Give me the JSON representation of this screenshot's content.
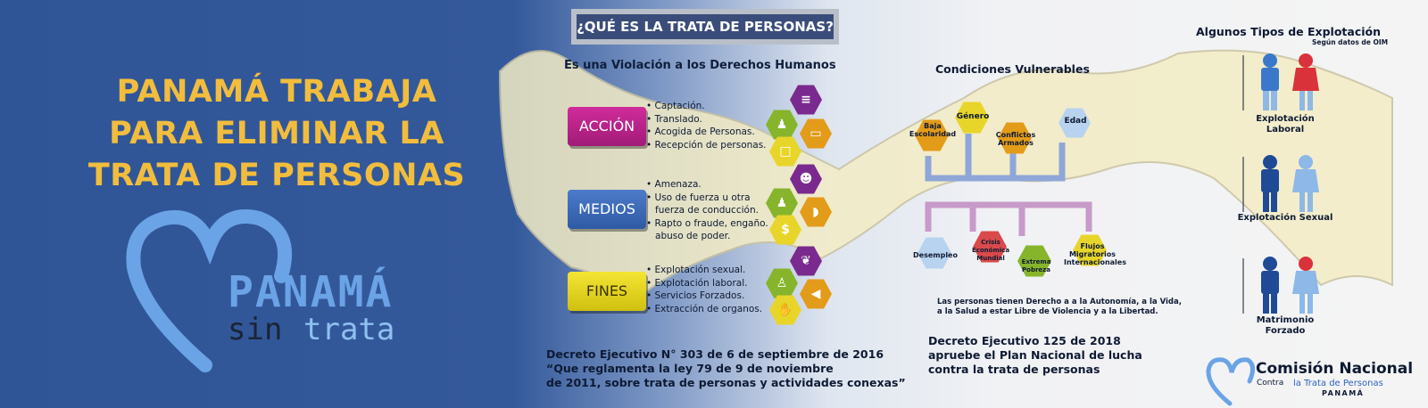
{
  "headline": [
    "PANAMÁ TRABAJA",
    "PARA ELIMINAR LA",
    "TRATA DE PERSONAS"
  ],
  "logo": {
    "word1": "PANAMÁ",
    "word2": "sin",
    "word3": "trata"
  },
  "question": "¿QUÉ ES LA TRATA DE PERSONAS?",
  "subtitle": "Es una Violación a los Derechos Humanos",
  "sections": [
    {
      "label": "ACCIÓN",
      "items": [
        "• Captación.",
        "• Translado.",
        "• Acogida de Personas.",
        "• Recepción de personas."
      ]
    },
    {
      "label": "MEDIOS",
      "items": [
        "• Amenaza.",
        "• Uso de fuerza u otra",
        "   fuerza de conducción.",
        "• Rapto o fraude, engaño.",
        "   abuso de poder."
      ]
    },
    {
      "label": "FINES",
      "items": [
        "• Explotación sexual.",
        "• Explotación laboral.",
        "• Servicios Forzados.",
        "• Extracción de organos."
      ]
    }
  ],
  "decreto1": [
    "Decreto Ejecutivo N° 303 de 6 de septiembre de 2016",
    "“Que reglamenta la ley 79 de 9 de noviembre",
    "de 2011, sobre trata de personas y actividades conexas”"
  ],
  "conditions": {
    "title": "Condiciones Vulnerables",
    "top": [
      "Baja Escolaridad",
      "Género",
      "Conflictos Armados",
      "Edad"
    ],
    "bottom": [
      "Desempleo",
      "Crisis Económica Mundial",
      "Extrema Pobreza",
      "Flujos Migratorios Internacionales"
    ]
  },
  "rights": [
    "Las personas tienen Derecho a a la Autonomía, a la Vida,",
    "a la Salud a estar Libre de Violencia y a la Libertad."
  ],
  "decreto2": [
    "Decreto Ejecutivo 125 de 2018",
    "apruebe el Plan Nacional de lucha",
    "contra la trata de personas"
  ],
  "tipos": {
    "title": "Algunos Tipos de Explotación",
    "subtitle": "Según datos de OIM",
    "items": [
      "Explotación Laboral",
      "Explotación Sexual",
      "Matrimonio Forzado"
    ]
  },
  "comision": {
    "title": "Comisión Nacional",
    "pre": "Contra",
    "highlight": "la Trata de Personas",
    "country": "PANAMÁ"
  },
  "colors": {
    "bg_blue": "#2f5597",
    "headline_gold": "#f2bd3d",
    "logo_blue": "#6aa3e6",
    "accion": "#c2248c",
    "medios": "#3d6bb8",
    "fines": "#e8d52a"
  }
}
